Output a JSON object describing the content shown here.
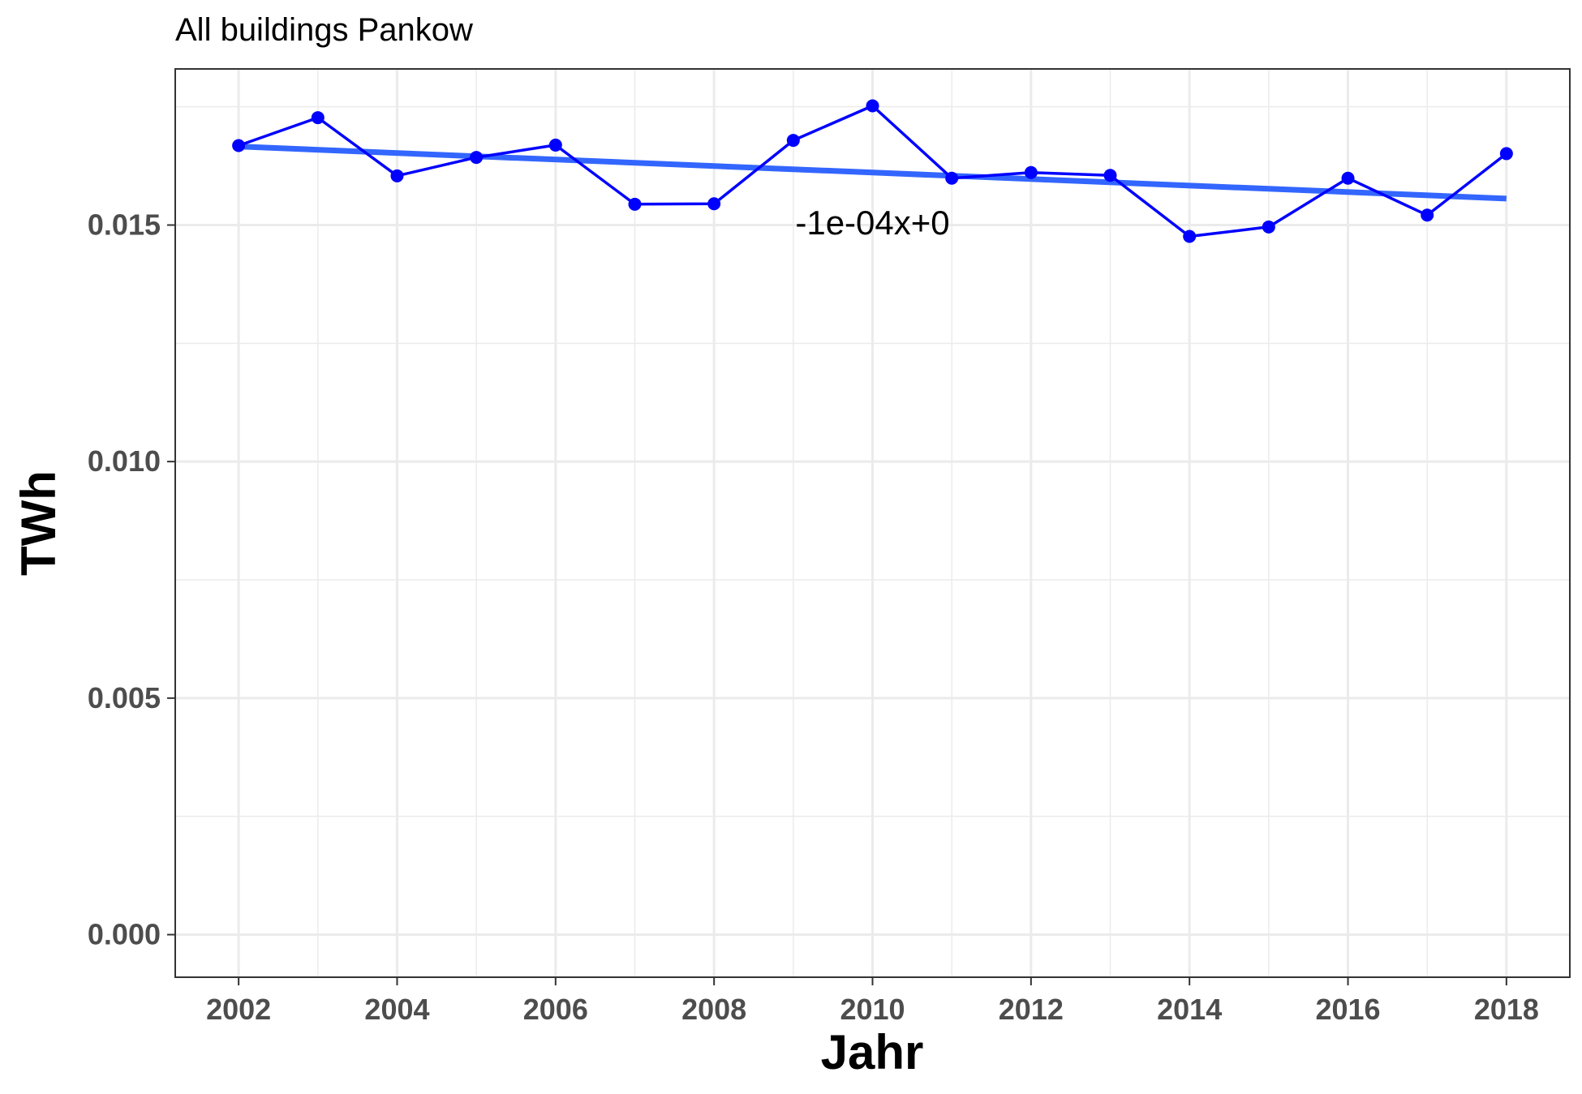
{
  "chart_data": {
    "type": "line",
    "title": "All buildings Pankow",
    "xlabel": "Jahr",
    "ylabel": "TWh",
    "x": [
      2002,
      2003,
      2004,
      2005,
      2006,
      2007,
      2008,
      2009,
      2010,
      2011,
      2012,
      2013,
      2014,
      2015,
      2016,
      2017,
      2018
    ],
    "series": [
      {
        "values": [
          0.01668,
          0.01727,
          0.01604,
          0.01643,
          0.01669,
          0.01544,
          0.01545,
          0.01679,
          0.01752,
          0.01599,
          0.01611,
          0.01605,
          0.01476,
          0.01496,
          0.01599,
          0.01521,
          0.01651
        ],
        "color": "#0000ff"
      }
    ],
    "trend": {
      "start": [
        2002,
        0.01666
      ],
      "end": [
        2018,
        0.01556
      ],
      "color": "#3366ff"
    },
    "annotation": {
      "text": "-1e-04x+0",
      "x": 2010,
      "y": 0.0148
    },
    "xticks": [
      "2002",
      "2004",
      "2006",
      "2008",
      "2010",
      "2012",
      "2014",
      "2016",
      "2018"
    ],
    "yticks": [
      "0.000",
      "0.005",
      "0.010",
      "0.015"
    ],
    "xlim": [
      2001.2,
      2018.8
    ],
    "ylim": [
      -0.0009,
      0.0183
    ],
    "grid": true,
    "legend": "none"
  }
}
